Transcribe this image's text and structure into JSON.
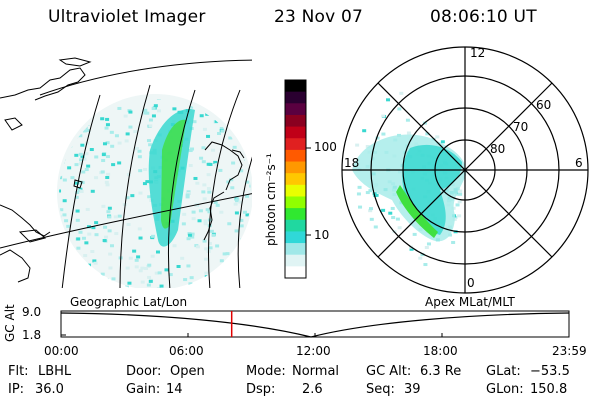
{
  "header": {
    "title": "Ultraviolet Imager",
    "date": "23 Nov 07",
    "time": "08:06:10 UT"
  },
  "colorbar": {
    "label": "photon cm⁻²s⁻¹",
    "ticks": [
      "100",
      "10"
    ],
    "colors": [
      "#000000",
      "#2a0030",
      "#5a0040",
      "#8a0020",
      "#c00018",
      "#e02020",
      "#ff5a00",
      "#ff9800",
      "#ffc800",
      "#e8ff00",
      "#90ff00",
      "#30e830",
      "#20d8a0",
      "#30d8d8",
      "#a0e8e8",
      "#e0f4f4",
      "#ffffff"
    ]
  },
  "polar": {
    "mlt_labels": [
      "12",
      "18",
      "6",
      "0"
    ],
    "lat_labels": [
      "60",
      "70",
      "80"
    ]
  },
  "altitude_panel": {
    "left_caption": "Geographic Lat/Lon",
    "right_caption": "Apex MLat/MLT",
    "y_axis_label": "GC Alt",
    "y_ticks": [
      "9.0",
      "1.8"
    ],
    "x_ticks": [
      "00:00",
      "06:00",
      "12:00",
      "18:00",
      "23:59"
    ],
    "current_time_fraction": 0.336
  },
  "status": {
    "row1": {
      "flt_label": "Flt:",
      "flt_value": "LBHL",
      "door_label": "Door:",
      "door_value": "Open",
      "mode_label": "Mode:",
      "mode_value": "Normal",
      "gcalt_label": "GC Alt:",
      "gcalt_value": "6.3 Re",
      "glat_label": "GLat:",
      "glat_value": "−53.5"
    },
    "row2": {
      "ip_label": "IP:",
      "ip_value": "36.0",
      "gain_label": "Gain:",
      "gain_value": "14",
      "dsp_label": "Dsp:",
      "dsp_value": "2.6",
      "seq_label": "Seq:",
      "seq_value": "39",
      "glon_label": "GLon:",
      "glon_value": "150.8"
    }
  },
  "colors": {
    "cyan": "#38d8d0",
    "light_cyan": "#a8ecea",
    "green": "#40e040",
    "marker_red": "#e00000"
  }
}
